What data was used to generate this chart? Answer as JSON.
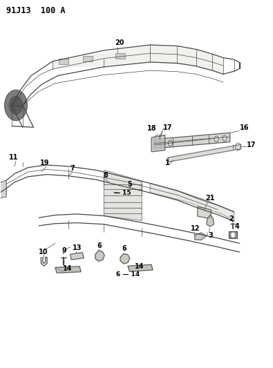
{
  "bg_color": "#ffffff",
  "line_color": "#444444",
  "label_color": "#000000",
  "header_text": "91J13  100 A",
  "header_fontsize": 8.5,
  "fig_width": 3.95,
  "fig_height": 5.33,
  "dpi": 100
}
